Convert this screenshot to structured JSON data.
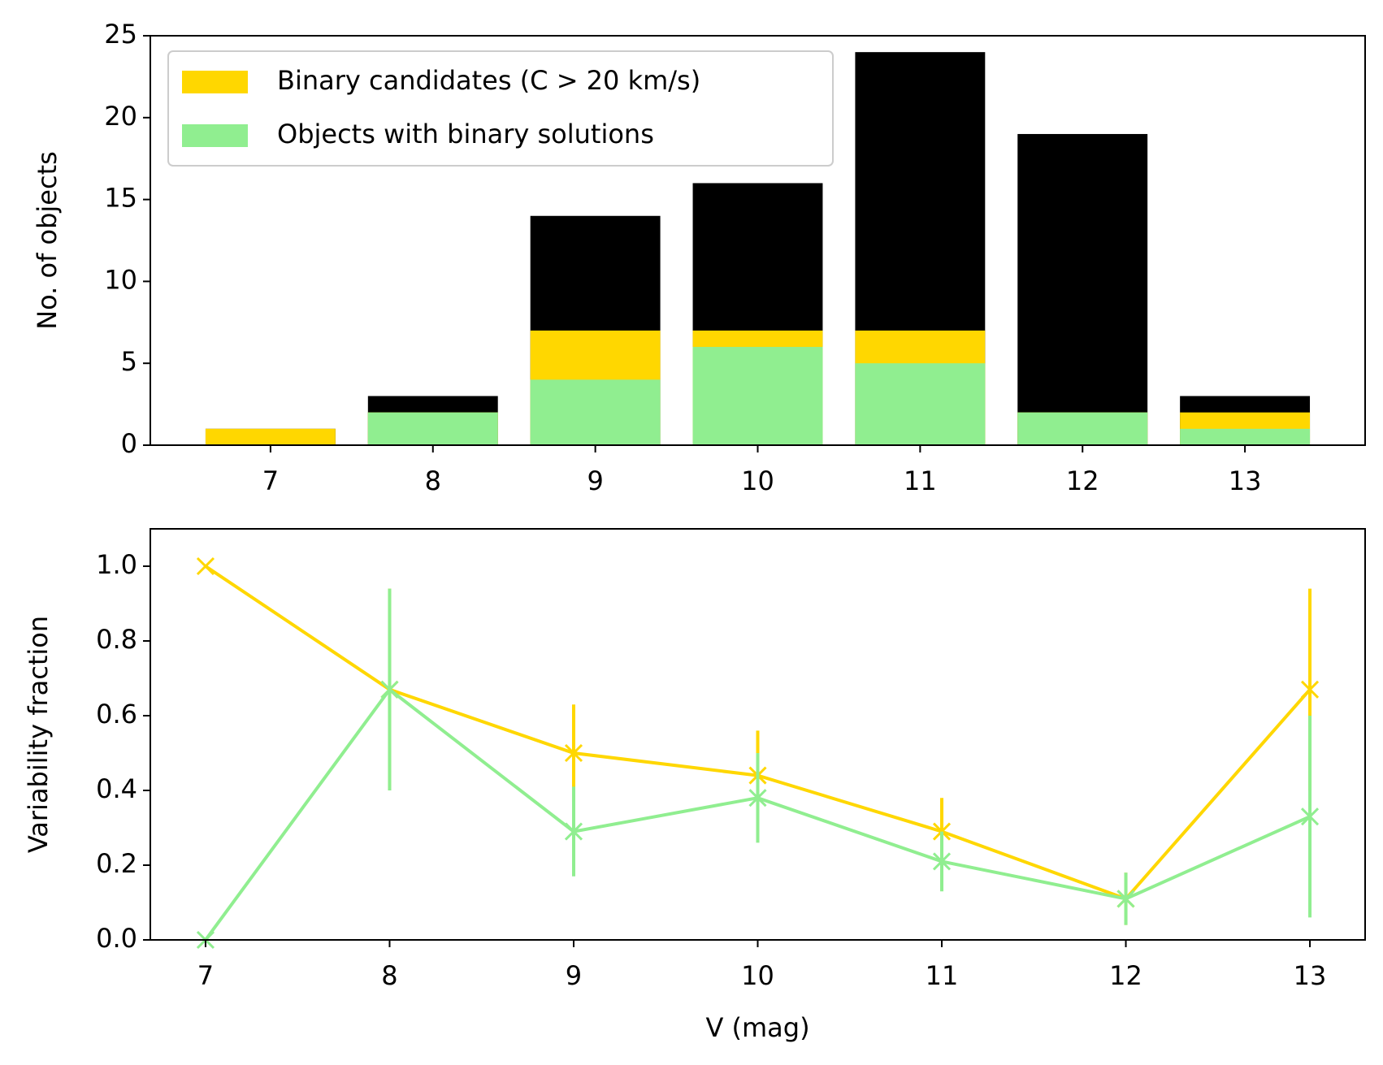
{
  "chart_data": [
    {
      "type": "bar",
      "ylabel": "No. of objects",
      "x": [
        7,
        8,
        9,
        10,
        11,
        12,
        13
      ],
      "series": [
        {
          "color": "#000000",
          "values": [
            1,
            3,
            14,
            16,
            24,
            19,
            3
          ]
        },
        {
          "name": "Binary candidates (C > 20 km/s)",
          "color": "#ffd700",
          "values": [
            1,
            2,
            7,
            7,
            7,
            2,
            2
          ]
        },
        {
          "name": "Objects with binary solutions",
          "color": "#90ee90",
          "values": [
            0,
            2,
            4,
            6,
            5,
            2,
            1
          ]
        }
      ],
      "bar_width": 0.8,
      "xlim": [
        6.26,
        13.74
      ],
      "xticks": [
        7,
        8,
        9,
        10,
        11,
        12,
        13
      ],
      "ylim": [
        0,
        25
      ],
      "yticks": [
        0,
        5,
        10,
        15,
        20,
        25
      ],
      "legend": "upper left"
    },
    {
      "type": "line",
      "xlabel": "V (mag)",
      "ylabel": "Variability fraction",
      "x": [
        7,
        8,
        9,
        10,
        11,
        12,
        13
      ],
      "series": [
        {
          "color": "#ffd700",
          "values": [
            1.0,
            0.67,
            0.5,
            0.44,
            0.29,
            0.11,
            0.67
          ],
          "errors": [
            0,
            0.27,
            0.13,
            0.12,
            0.09,
            0.07,
            0.27
          ]
        },
        {
          "color": "#90ee90",
          "values": [
            0,
            0.67,
            0.29,
            0.38,
            0.21,
            0.11,
            0.33
          ],
          "errors": [
            0,
            0.27,
            0.12,
            0.12,
            0.08,
            0.07,
            0.27
          ]
        }
      ],
      "xlim": [
        6.7,
        13.3
      ],
      "xticks": [
        7,
        8,
        9,
        10,
        11,
        12,
        13
      ],
      "ylim": [
        0,
        1.1
      ],
      "yticks": [
        {
          "value": 0,
          "label": "0.0"
        },
        0.2,
        0.4,
        0.6,
        0.8,
        {
          "value": 1,
          "label": "1.0"
        }
      ]
    }
  ]
}
